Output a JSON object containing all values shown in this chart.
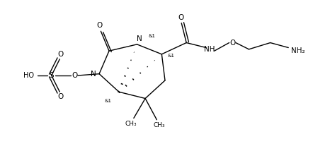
{
  "background_color": "#ffffff",
  "figsize": [
    4.66,
    2.14
  ],
  "dpi": 100,
  "line_color": "#000000",
  "line_width": 1.0,
  "text_color": "#000000",
  "font_size": 7.0,
  "xlim": [
    0,
    10
  ],
  "ylim": [
    0,
    4.5
  ]
}
